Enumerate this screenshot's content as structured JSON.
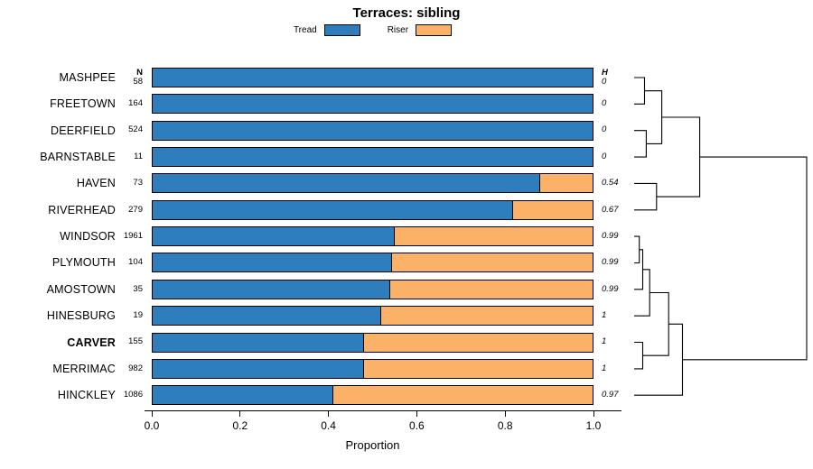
{
  "title": "Terraces: sibling",
  "legend": {
    "tread_label": "Tread",
    "riser_label": "Riser"
  },
  "colors": {
    "tread": "#2E7EBD",
    "riser": "#FBB268",
    "bar_border": "#000000"
  },
  "chart_data": {
    "type": "bar",
    "orientation": "horizontal",
    "stacked": true,
    "xlabel": "Proportion",
    "xlim": [
      0,
      1
    ],
    "x_ticks": [
      0,
      0.2,
      0.4,
      0.6,
      0.8,
      1.0
    ],
    "columns": {
      "n_header": "N",
      "h_header": "H"
    },
    "series_names": [
      "Tread",
      "Riser"
    ],
    "rows": [
      {
        "label": "MASHPEE",
        "n": 58,
        "tread": 1.0,
        "riser": 0.0,
        "h": "0",
        "bold": false
      },
      {
        "label": "FREETOWN",
        "n": 164,
        "tread": 1.0,
        "riser": 0.0,
        "h": "0",
        "bold": false
      },
      {
        "label": "DEERFIELD",
        "n": 524,
        "tread": 1.0,
        "riser": 0.0,
        "h": "0",
        "bold": false
      },
      {
        "label": "BARNSTABLE",
        "n": 11,
        "tread": 1.0,
        "riser": 0.0,
        "h": "0",
        "bold": false
      },
      {
        "label": "HAVEN",
        "n": 73,
        "tread": 0.88,
        "riser": 0.12,
        "h": "0.54",
        "bold": false
      },
      {
        "label": "RIVERHEAD",
        "n": 279,
        "tread": 0.82,
        "riser": 0.18,
        "h": "0.67",
        "bold": false
      },
      {
        "label": "WINDSOR",
        "n": 1961,
        "tread": 0.55,
        "riser": 0.45,
        "h": "0.99",
        "bold": false
      },
      {
        "label": "PLYMOUTH",
        "n": 104,
        "tread": 0.545,
        "riser": 0.455,
        "h": "0.99",
        "bold": false
      },
      {
        "label": "AMOSTOWN",
        "n": 35,
        "tread": 0.54,
        "riser": 0.46,
        "h": "0.99",
        "bold": false
      },
      {
        "label": "HINESBURG",
        "n": 19,
        "tread": 0.52,
        "riser": 0.48,
        "h": "1",
        "bold": false
      },
      {
        "label": "CARVER",
        "n": 155,
        "tread": 0.48,
        "riser": 0.52,
        "h": "1",
        "bold": true
      },
      {
        "label": "MERRIMAC",
        "n": 982,
        "tread": 0.48,
        "riser": 0.52,
        "h": "1",
        "bold": false
      },
      {
        "label": "HINCKLEY",
        "n": 1086,
        "tread": 0.41,
        "riser": 0.59,
        "h": "0.97",
        "bold": false
      }
    ],
    "dendrogram": {
      "h": 1.0,
      "children": [
        {
          "h": 0.38,
          "children": [
            {
              "h": 0.16,
              "children": [
                {
                  "h": 0.06,
                  "children": [
                    {
                      "leaf": 0
                    },
                    {
                      "leaf": 1
                    }
                  ]
                },
                {
                  "h": 0.07,
                  "children": [
                    {
                      "leaf": 2
                    },
                    {
                      "leaf": 3
                    }
                  ]
                }
              ]
            },
            {
              "h": 0.13,
              "children": [
                {
                  "leaf": 4
                },
                {
                  "leaf": 5
                }
              ]
            }
          ]
        },
        {
          "h": 0.28,
          "children": [
            {
              "h": 0.2,
              "children": [
                {
                  "h": 0.09,
                  "children": [
                    {
                      "h": 0.05,
                      "children": [
                        {
                          "h": 0.03,
                          "children": [
                            {
                              "leaf": 6
                            },
                            {
                              "leaf": 7
                            }
                          ]
                        },
                        {
                          "leaf": 8
                        }
                      ]
                    },
                    {
                      "leaf": 9
                    }
                  ]
                },
                {
                  "h": 0.05,
                  "children": [
                    {
                      "leaf": 10
                    },
                    {
                      "leaf": 11
                    }
                  ]
                }
              ]
            },
            {
              "leaf": 12
            }
          ]
        }
      ]
    }
  }
}
